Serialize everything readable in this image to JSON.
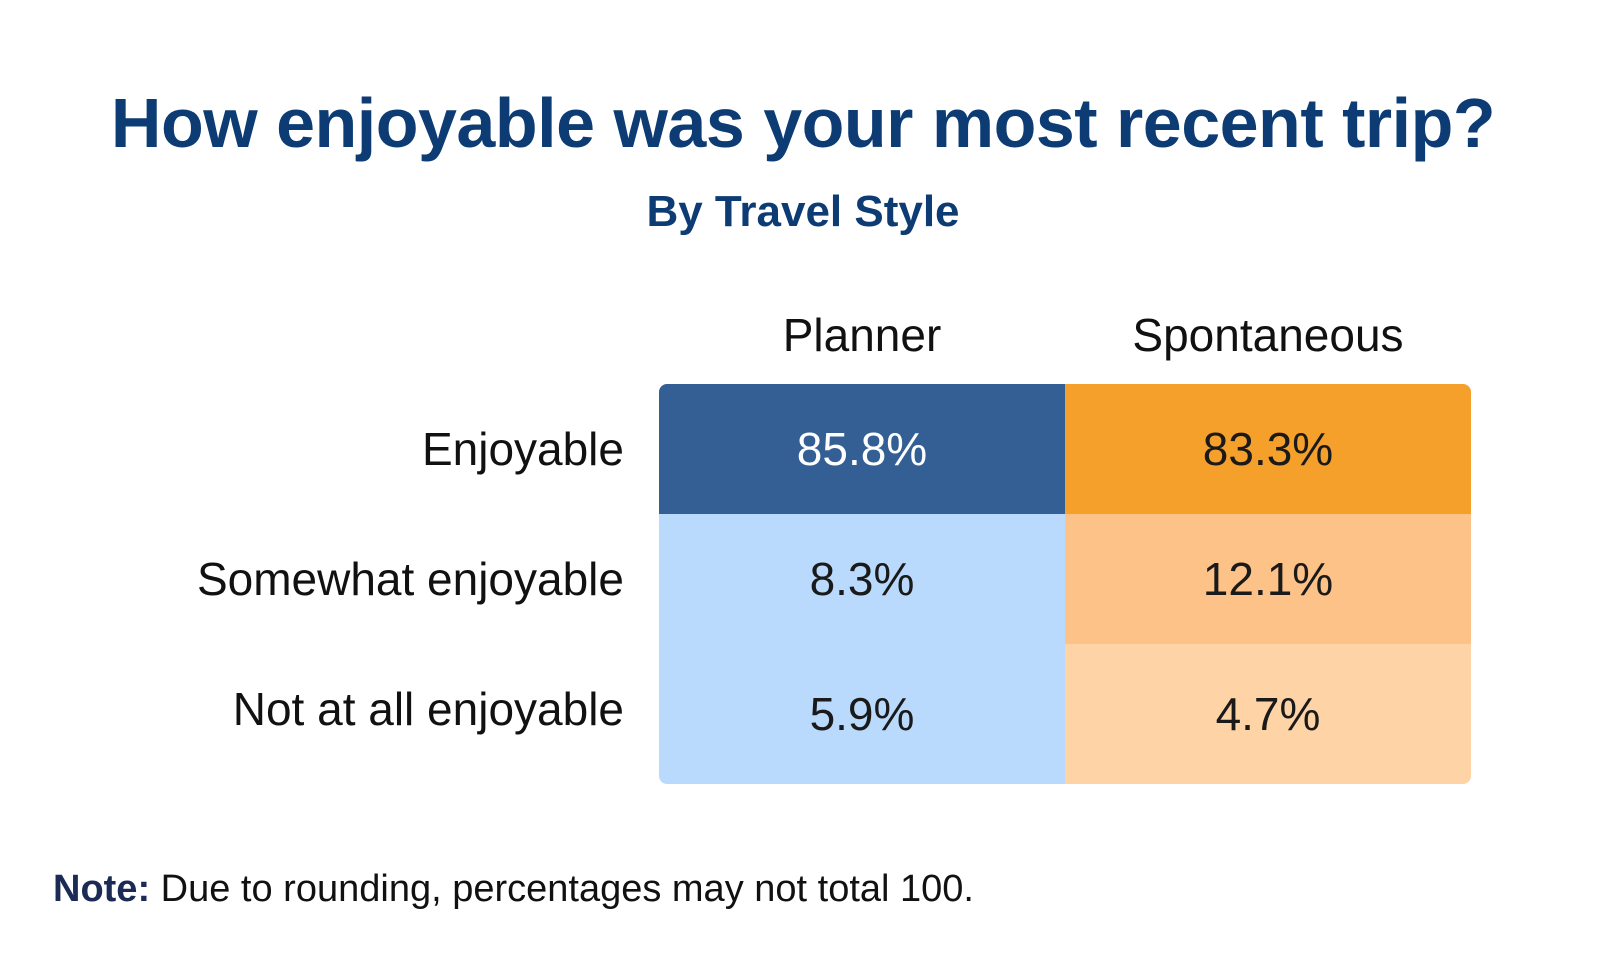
{
  "chart_data": {
    "type": "table",
    "title": "How enjoyable was your most recent trip?",
    "subtitle": "By Travel Style",
    "columns": [
      "Planner",
      "Spontaneous"
    ],
    "rows": [
      "Enjoyable",
      "Somewhat enjoyable",
      "Not at all enjoyable"
    ],
    "cells": [
      [
        "85.8%",
        "83.3%"
      ],
      [
        "8.3%",
        "12.1%"
      ],
      [
        "5.9%",
        "4.7%"
      ]
    ],
    "values": [
      [
        85.8,
        83.3
      ],
      [
        8.3,
        12.1
      ],
      [
        5.9,
        4.7
      ]
    ],
    "cell_colors": [
      [
        "#345f94",
        "#f5a02b"
      ],
      [
        "#b9dafc",
        "#fdc287"
      ],
      [
        "#b9dafc",
        "#fed3a6"
      ]
    ],
    "text_colors": [
      [
        "#ffffff",
        "#1a1a1a"
      ],
      [
        "#1a1a1a",
        "#1a1a1a"
      ],
      [
        "#1a1a1a",
        "#1a1a1a"
      ]
    ]
  },
  "note": {
    "label": "Note:",
    "text": " Due to rounding, percentages may not total 100."
  }
}
